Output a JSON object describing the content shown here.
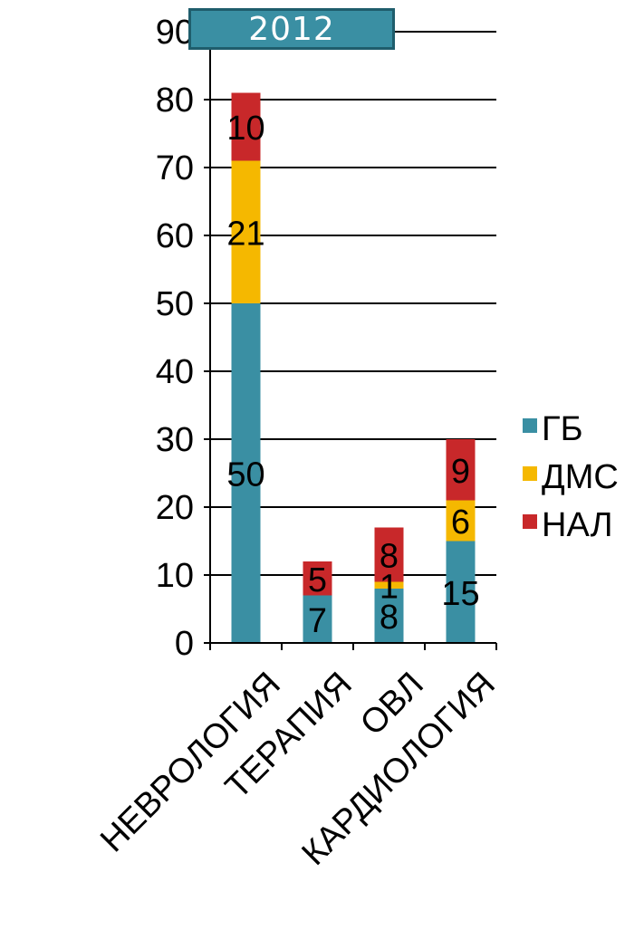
{
  "chart_data": {
    "type": "bar",
    "stacked": true,
    "title": "2012",
    "categories": [
      "НЕВРОЛОГИЯ",
      "ТЕРАПИЯ",
      "ОВЛ",
      "КАРДИОЛОГИЯ"
    ],
    "series": [
      {
        "name": "ГБ",
        "color": "#3a8fa3",
        "values": [
          50,
          7,
          8,
          15
        ]
      },
      {
        "name": "ДМС",
        "color": "#f5b800",
        "values": [
          21,
          0,
          1,
          6
        ]
      },
      {
        "name": "НАЛ",
        "color": "#c8282a",
        "values": [
          10,
          5,
          8,
          9
        ]
      }
    ],
    "ylim": [
      0,
      90
    ],
    "yticks": [
      0,
      10,
      20,
      30,
      40,
      50,
      60,
      70,
      80,
      90
    ],
    "grid": true,
    "legend": "right"
  }
}
